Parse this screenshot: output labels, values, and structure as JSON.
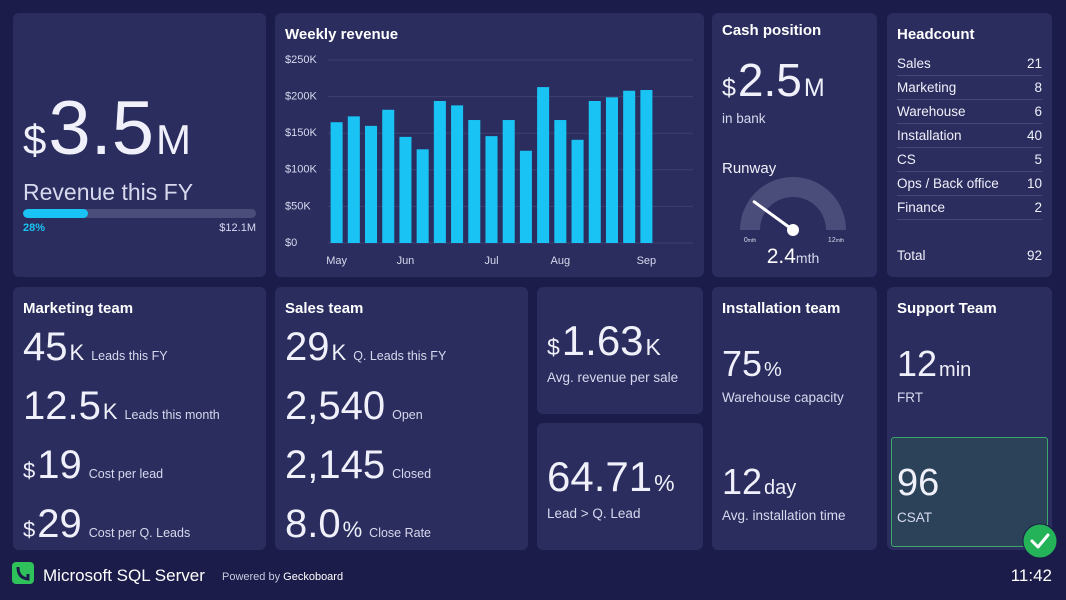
{
  "revenue": {
    "prefix": "$",
    "number": "3.5",
    "suffix": "M",
    "label": "Revenue this FY",
    "progress": {
      "value": 28,
      "label": "28%",
      "goal": "$12.1M"
    }
  },
  "chart_data": {
    "type": "bar",
    "title": "Weekly revenue",
    "categories": [
      "May",
      null,
      null,
      null,
      "Jun",
      null,
      null,
      null,
      null,
      "Jul",
      null,
      null,
      null,
      "Aug",
      null,
      null,
      null,
      null,
      "Sep"
    ],
    "values": [
      165000,
      173000,
      160000,
      182000,
      145000,
      128000,
      194000,
      188000,
      168000,
      146000,
      168000,
      126000,
      213000,
      168000,
      141000,
      194000,
      199000,
      208000,
      209000
    ],
    "color": "#19c3f3",
    "ylim": [
      0,
      250000
    ],
    "yticks": [
      {
        "value": 0,
        "label": "$0"
      },
      {
        "value": 50000,
        "label": "$50K"
      },
      {
        "value": 100000,
        "label": "$100K"
      },
      {
        "value": 150000,
        "label": "$150K"
      },
      {
        "value": 200000,
        "label": "$200K"
      },
      {
        "value": 250000,
        "label": "$250K"
      }
    ],
    "grid": true
  },
  "cash": {
    "title": "Cash position",
    "prefix": "$",
    "number": "2.5",
    "suffix": "M",
    "label": "in bank",
    "runway": {
      "title": "Runway",
      "min": 0,
      "max": 12,
      "value": 2.4,
      "unit": "mth"
    }
  },
  "headcount": {
    "title": "Headcount",
    "rows": [
      [
        "Sales",
        "21"
      ],
      [
        "Marketing",
        "8"
      ],
      [
        "Warehouse",
        "6"
      ],
      [
        "Installation",
        "40"
      ],
      [
        "CS",
        "5"
      ],
      [
        "Ops / Back office",
        "10"
      ],
      [
        "Finance",
        "2"
      ]
    ],
    "total": [
      "Total",
      "92"
    ]
  },
  "marketing": {
    "title": "Marketing team",
    "stats": [
      {
        "number": "45",
        "suffix": "K",
        "label": "Leads this FY"
      },
      {
        "number": "12.5",
        "suffix": "K",
        "label": "Leads this month"
      },
      {
        "prefix": "$",
        "number": "19",
        "label": "Cost per lead"
      },
      {
        "prefix": "$",
        "number": "29",
        "label": "Cost per Q. Leads"
      }
    ]
  },
  "sales": {
    "title": "Sales team",
    "stats": [
      {
        "number": "29",
        "suffix": "K",
        "label": "Q. Leads this FY"
      },
      {
        "number": "2,540",
        "label": "Open"
      },
      {
        "number": "2,145",
        "label": "Closed"
      },
      {
        "number": "8.0",
        "suffix": "%",
        "label": "Close Rate"
      }
    ]
  },
  "avg_revenue": {
    "prefix": "$",
    "number": "1.63",
    "suffix": "K",
    "label": "Avg. revenue per sale"
  },
  "lead_conversion": {
    "number": "64.71",
    "suffix": "%",
    "label": "Lead > Q. Lead"
  },
  "installation": {
    "title": "Installation team",
    "stats": [
      {
        "number": "75",
        "suffix": "%",
        "label": "Warehouse capacity"
      },
      {
        "number": "12",
        "suffix": "day",
        "label": "Avg. installation time"
      }
    ]
  },
  "support": {
    "title": "Support Team",
    "stats": [
      {
        "number": "12",
        "suffix": "min",
        "label": "FRT"
      },
      {
        "number": "96",
        "label": "CSAT"
      }
    ]
  },
  "footer": {
    "source": "Microsoft SQL Server",
    "powered_by": "Powered by",
    "brand": "Geckoboard",
    "time": "11:42"
  }
}
